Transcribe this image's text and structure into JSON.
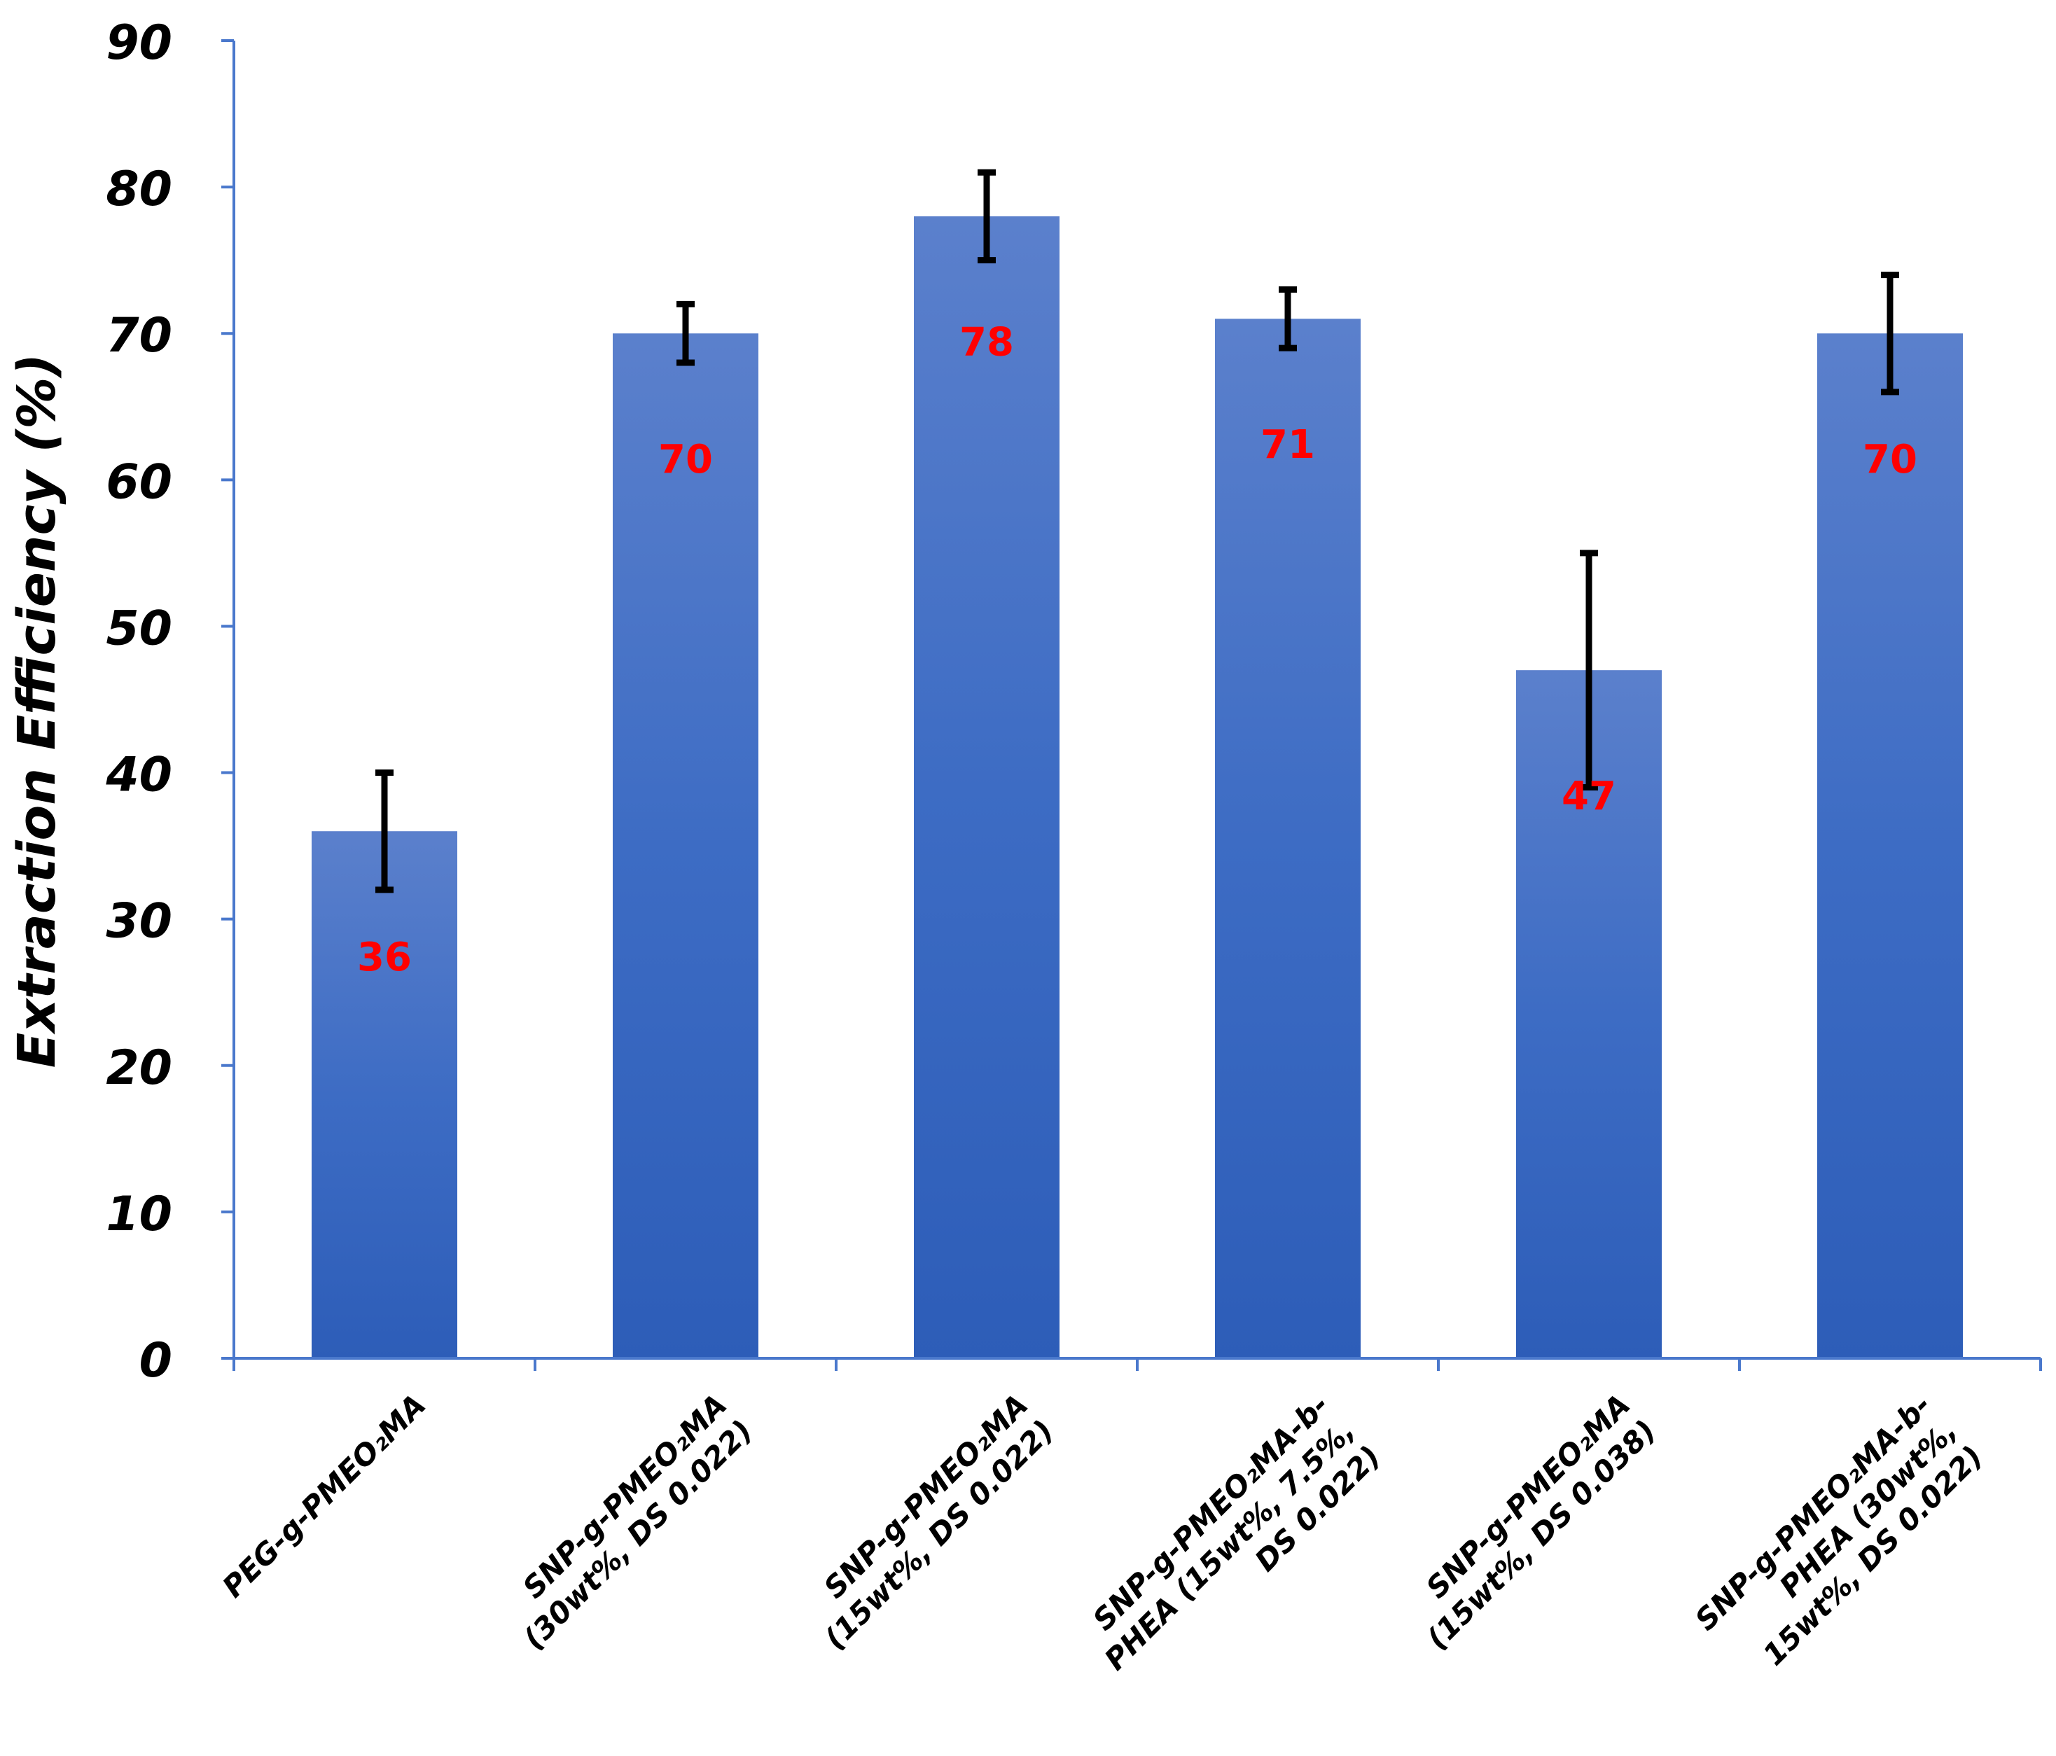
{
  "chart_data": {
    "type": "bar",
    "title": "",
    "xlabel": "",
    "ylabel": "Extraction Efficiency (%)",
    "ylim": [
      0,
      90
    ],
    "yticks": [
      0,
      10,
      20,
      30,
      40,
      50,
      60,
      70,
      80,
      90
    ],
    "grid": false,
    "legend": "none",
    "categories": [
      [
        "PEG-g-PMEO₂MA"
      ],
      [
        "SNP-g-PMEO₂MA",
        "(30wt%, DS 0.022)"
      ],
      [
        "SNP-g-PMEO₂MA",
        "(15wt%, DS 0.022)"
      ],
      [
        "SNP-g-PMEO₂MA-b-",
        "PHEA (15wt%, 7.5%,",
        "DS 0.022)"
      ],
      [
        "SNP-g-PMEO₂MA",
        "(15wt%, DS 0.038)"
      ],
      [
        "SNP-g-PMEO₂MA-b-",
        "PHEA (30wt%,",
        "15wt%, DS 0.022)"
      ]
    ],
    "values": [
      36,
      70,
      78,
      71,
      47,
      70
    ],
    "error_low": [
      32,
      68,
      75,
      69,
      39,
      66
    ],
    "error_high": [
      40,
      72,
      81,
      73,
      55,
      74
    ],
    "data_labels": [
      "36",
      "70",
      "78",
      "71",
      "47",
      "70"
    ],
    "colors": {
      "bar_top": "#5b80cc",
      "bar_mid": "#3d6cc4",
      "bar_bottom": "#2d5db8",
      "axis": "#4a78cc",
      "error": "#000000",
      "label": "#ff0000"
    }
  }
}
